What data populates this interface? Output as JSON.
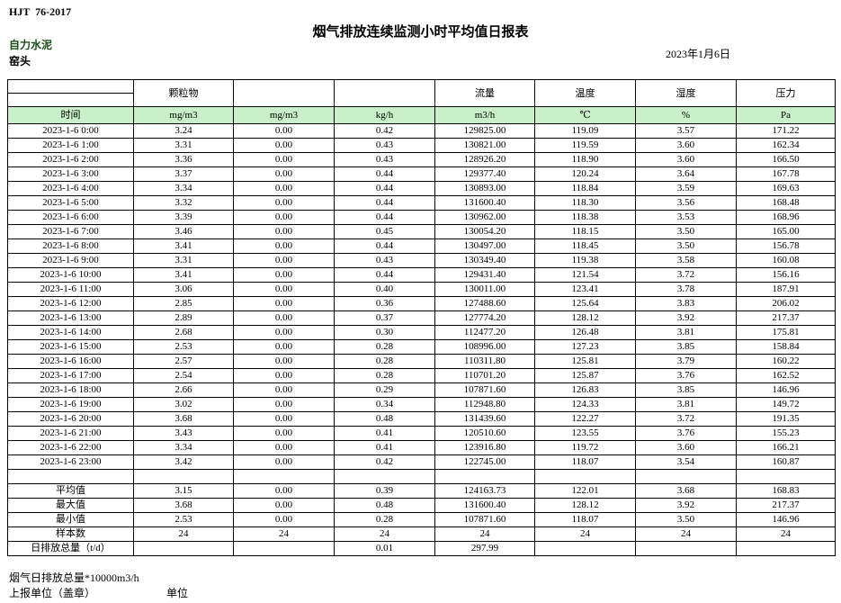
{
  "page": {
    "doc_code": "HJT  76-2017",
    "title": "烟气排放连续监测小时平均值日报表",
    "company": "自力水泥",
    "station": "窑头",
    "date": "2023年1月6日"
  },
  "table": {
    "group_headers": [
      "",
      "颗粒物",
      "",
      "",
      "流量",
      "温度",
      "湿度",
      "压力"
    ],
    "unit_headers": [
      "时间",
      "mg/m3",
      "mg/m3",
      "kg/h",
      "m3/h",
      "℃",
      "%",
      "Pa"
    ],
    "rows": [
      [
        "2023-1-6 0:00",
        "3.24",
        "0.00",
        "0.42",
        "129825.00",
        "119.09",
        "3.57",
        "171.22"
      ],
      [
        "2023-1-6 1:00",
        "3.31",
        "0.00",
        "0.43",
        "130821.00",
        "119.59",
        "3.60",
        "162.34"
      ],
      [
        "2023-1-6 2:00",
        "3.36",
        "0.00",
        "0.43",
        "128926.20",
        "118.90",
        "3.60",
        "166.50"
      ],
      [
        "2023-1-6 3:00",
        "3.37",
        "0.00",
        "0.44",
        "129377.40",
        "120.24",
        "3.64",
        "167.78"
      ],
      [
        "2023-1-6 4:00",
        "3.34",
        "0.00",
        "0.44",
        "130893.00",
        "118.84",
        "3.59",
        "169.63"
      ],
      [
        "2023-1-6 5:00",
        "3.32",
        "0.00",
        "0.44",
        "131600.40",
        "118.30",
        "3.56",
        "168.48"
      ],
      [
        "2023-1-6 6:00",
        "3.39",
        "0.00",
        "0.44",
        "130962.00",
        "118.38",
        "3.53",
        "168.96"
      ],
      [
        "2023-1-6 7:00",
        "3.46",
        "0.00",
        "0.45",
        "130054.20",
        "118.15",
        "3.50",
        "165.00"
      ],
      [
        "2023-1-6 8:00",
        "3.41",
        "0.00",
        "0.44",
        "130497.00",
        "118.45",
        "3.50",
        "156.78"
      ],
      [
        "2023-1-6 9:00",
        "3.31",
        "0.00",
        "0.43",
        "130349.40",
        "119.38",
        "3.58",
        "160.08"
      ],
      [
        "2023-1-6 10:00",
        "3.41",
        "0.00",
        "0.44",
        "129431.40",
        "121.54",
        "3.72",
        "156.16"
      ],
      [
        "2023-1-6 11:00",
        "3.06",
        "0.00",
        "0.40",
        "130011.00",
        "123.41",
        "3.78",
        "187.91"
      ],
      [
        "2023-1-6 12:00",
        "2.85",
        "0.00",
        "0.36",
        "127488.60",
        "125.64",
        "3.83",
        "206.02"
      ],
      [
        "2023-1-6 13:00",
        "2.89",
        "0.00",
        "0.37",
        "127774.20",
        "128.12",
        "3.92",
        "217.37"
      ],
      [
        "2023-1-6 14:00",
        "2.68",
        "0.00",
        "0.30",
        "112477.20",
        "126.48",
        "3.81",
        "175.81"
      ],
      [
        "2023-1-6 15:00",
        "2.53",
        "0.00",
        "0.28",
        "108996.00",
        "127.23",
        "3.85",
        "158.84"
      ],
      [
        "2023-1-6 16:00",
        "2.57",
        "0.00",
        "0.28",
        "110311.80",
        "125.81",
        "3.79",
        "160.22"
      ],
      [
        "2023-1-6 17:00",
        "2.54",
        "0.00",
        "0.28",
        "110701.20",
        "125.87",
        "3.76",
        "162.52"
      ],
      [
        "2023-1-6 18:00",
        "2.66",
        "0.00",
        "0.29",
        "107871.60",
        "126.83",
        "3.85",
        "146.96"
      ],
      [
        "2023-1-6 19:00",
        "3.02",
        "0.00",
        "0.34",
        "112948.80",
        "124.33",
        "3.81",
        "149.72"
      ],
      [
        "2023-1-6 20:00",
        "3.68",
        "0.00",
        "0.48",
        "131439.60",
        "122.27",
        "3.72",
        "191.35"
      ],
      [
        "2023-1-6 21:00",
        "3.43",
        "0.00",
        "0.41",
        "120510.60",
        "123.55",
        "3.76",
        "155.23"
      ],
      [
        "2023-1-6 22:00",
        "3.34",
        "0.00",
        "0.41",
        "123916.80",
        "119.72",
        "3.60",
        "166.21"
      ],
      [
        "2023-1-6 23:00",
        "3.42",
        "0.00",
        "0.42",
        "122745.00",
        "118.07",
        "3.54",
        "160.87"
      ]
    ],
    "summary_rows": [
      {
        "label": "平均值",
        "values": [
          "3.15",
          "0.00",
          "0.39",
          "124163.73",
          "122.01",
          "3.68",
          "168.83"
        ]
      },
      {
        "label": "最大值",
        "values": [
          "3.68",
          "0.00",
          "0.48",
          "131600.40",
          "128.12",
          "3.92",
          "217.37"
        ]
      },
      {
        "label": "最小值",
        "values": [
          "2.53",
          "0.00",
          "0.28",
          "107871.60",
          "118.07",
          "3.50",
          "146.96"
        ]
      },
      {
        "label": "样本数",
        "values": [
          "24",
          "24",
          "24",
          "24",
          "24",
          "24",
          "24"
        ]
      },
      {
        "label": "日排放总量（t/d）",
        "values": [
          "",
          "",
          "0.01",
          "297.99",
          "",
          "",
          ""
        ]
      }
    ]
  },
  "footer": {
    "note": "烟气日排放总量*10000m3/h",
    "report_unit_label": "上报单位（盖章）",
    "unit_label": "单位"
  },
  "colors": {
    "unit_row_bg": "#c9f0c9",
    "company_text": "#1a4d1a",
    "border": "#000000"
  }
}
